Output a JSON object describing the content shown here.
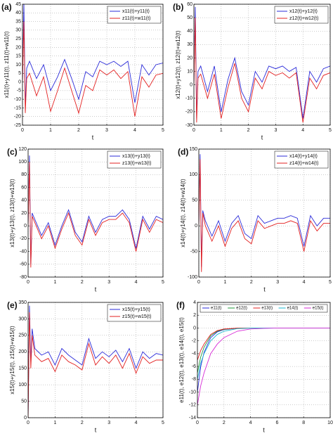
{
  "chart_data": [
    {
      "type": "line",
      "panel_label": "(a)",
      "xlabel": "t",
      "ylabel": "x11(t)+y11(t), z11(t)+w11(t)",
      "grid": true,
      "legend": "upper right",
      "xlim": [
        0,
        5
      ],
      "xticks": [
        0,
        1,
        2,
        3,
        4,
        5
      ],
      "ylim": [
        -25,
        45
      ],
      "yticks": [
        -25,
        -20,
        -15,
        -10,
        -5,
        0,
        5,
        10,
        15,
        20,
        25,
        30,
        35,
        40,
        45
      ],
      "x": [
        0,
        0.05,
        0.1,
        0.15,
        0.25,
        0.5,
        0.75,
        1,
        1.25,
        1.5,
        1.75,
        2,
        2.25,
        2.5,
        2.75,
        3,
        3.25,
        3.5,
        3.75,
        4,
        4.25,
        4.5,
        4.75,
        5
      ],
      "series": [
        {
          "name": "x11(t)+y11(t)",
          "color": "#2b2bd9",
          "values": [
            0,
            45,
            -15,
            8,
            12,
            2,
            10,
            -5,
            3,
            13,
            2,
            -10,
            6,
            3,
            12,
            10,
            12,
            9,
            12,
            -12,
            10,
            4,
            10,
            11
          ]
        },
        {
          "name": "z11(t)+w11(t)",
          "color": "#e32020",
          "values": [
            0,
            35,
            -18,
            2,
            5,
            -8,
            3,
            -17,
            -5,
            8,
            -5,
            -18,
            -2,
            -5,
            7,
            4,
            7,
            2,
            6,
            -20,
            3,
            -3,
            4,
            5
          ]
        }
      ]
    },
    {
      "type": "line",
      "panel_label": "(b)",
      "xlabel": "t",
      "ylabel": "x12(t)+y12(t), z12(t)+w12(t)",
      "grid": true,
      "legend": "upper right",
      "xlim": [
        0,
        5
      ],
      "xticks": [
        0,
        1,
        2,
        3,
        4,
        5
      ],
      "ylim": [
        -30,
        60
      ],
      "yticks": [
        -30,
        -20,
        -10,
        0,
        10,
        20,
        30,
        40,
        50,
        60
      ],
      "x": [
        0,
        0.05,
        0.1,
        0.15,
        0.25,
        0.5,
        0.75,
        1,
        1.25,
        1.5,
        1.75,
        2,
        2.25,
        2.5,
        2.75,
        3,
        3.25,
        3.5,
        3.75,
        4,
        4.25,
        4.5,
        4.75,
        5
      ],
      "series": [
        {
          "name": "x12(t)+y12(t)",
          "color": "#2b2bd9",
          "values": [
            0,
            58,
            -25,
            10,
            14,
            -5,
            14,
            -20,
            4,
            20,
            -5,
            -15,
            10,
            2,
            14,
            12,
            14,
            10,
            13,
            -25,
            10,
            2,
            12,
            14
          ]
        },
        {
          "name": "z12(t)+w12(t)",
          "color": "#e32020",
          "values": [
            0,
            50,
            -28,
            5,
            8,
            -10,
            8,
            -25,
            -2,
            16,
            -10,
            -20,
            5,
            -3,
            10,
            7,
            9,
            5,
            9,
            -28,
            5,
            -3,
            7,
            9
          ]
        }
      ]
    },
    {
      "type": "line",
      "panel_label": "(c)",
      "xlabel": "t",
      "ylabel": "x13(t)+y13(t), z13(t)+w13(t)",
      "grid": true,
      "legend": "upper right",
      "xlim": [
        0,
        5
      ],
      "xticks": [
        0,
        1,
        2,
        3,
        4,
        5
      ],
      "ylim": [
        -80,
        120
      ],
      "yticks": [
        -80,
        -60,
        -40,
        -20,
        0,
        20,
        40,
        60,
        80,
        100,
        120
      ],
      "x": [
        0,
        0.05,
        0.1,
        0.15,
        0.25,
        0.5,
        0.75,
        1,
        1.25,
        1.5,
        1.75,
        2,
        2.25,
        2.5,
        2.75,
        3,
        3.25,
        3.5,
        3.75,
        4,
        4.25,
        4.5,
        4.75,
        5
      ],
      "series": [
        {
          "name": "x13(t)+y13(t)",
          "color": "#2b2bd9",
          "values": [
            0,
            110,
            -60,
            20,
            10,
            -15,
            5,
            -30,
            0,
            25,
            -10,
            -25,
            15,
            -10,
            10,
            15,
            15,
            25,
            10,
            -35,
            15,
            -5,
            15,
            10
          ]
        },
        {
          "name": "z13(t)+w13(t)",
          "color": "#e32020",
          "values": [
            0,
            100,
            -65,
            15,
            5,
            -20,
            0,
            -35,
            -5,
            20,
            -15,
            -30,
            10,
            -15,
            5,
            10,
            10,
            20,
            5,
            -40,
            10,
            -10,
            10,
            5
          ]
        }
      ]
    },
    {
      "type": "line",
      "panel_label": "(d)",
      "xlabel": "t",
      "ylabel": "x14(t)+y14(t), z14(t)+w14(t)",
      "grid": true,
      "legend": "upper right",
      "xlim": [
        0,
        5
      ],
      "xticks": [
        0,
        1,
        2,
        3,
        4,
        5
      ],
      "ylim": [
        -100,
        150
      ],
      "yticks": [
        -100,
        -50,
        0,
        50,
        100,
        150
      ],
      "x": [
        0,
        0.05,
        0.1,
        0.15,
        0.25,
        0.5,
        0.75,
        1,
        1.25,
        1.5,
        1.75,
        2,
        2.25,
        2.5,
        2.75,
        3,
        3.25,
        3.5,
        3.75,
        4,
        4.25,
        4.5,
        4.75,
        5
      ],
      "series": [
        {
          "name": "x14(t)+y14(t)",
          "color": "#2b2bd9",
          "values": [
            0,
            140,
            -80,
            30,
            10,
            -20,
            10,
            -30,
            5,
            20,
            -15,
            -25,
            20,
            5,
            10,
            15,
            15,
            20,
            15,
            -40,
            20,
            0,
            15,
            15
          ]
        },
        {
          "name": "z14(t)+w14(t)",
          "color": "#e32020",
          "values": [
            0,
            130,
            -90,
            25,
            0,
            -30,
            0,
            -40,
            -5,
            10,
            -25,
            -35,
            10,
            -5,
            0,
            5,
            5,
            10,
            5,
            -50,
            10,
            -10,
            5,
            5
          ]
        }
      ]
    },
    {
      "type": "line",
      "panel_label": "(e)",
      "xlabel": "t",
      "ylabel": "x15(t)+y15(t), z15(t)+w15(t)",
      "grid": true,
      "legend": "upper right",
      "xlim": [
        0,
        5
      ],
      "xticks": [
        0,
        1,
        2,
        3,
        4,
        5
      ],
      "ylim": [
        0,
        350
      ],
      "yticks": [
        0,
        50,
        100,
        150,
        200,
        250,
        300,
        350
      ],
      "x": [
        0,
        0.05,
        0.1,
        0.15,
        0.25,
        0.5,
        0.75,
        1,
        1.25,
        1.5,
        1.75,
        2,
        2.25,
        2.5,
        2.75,
        3,
        3.25,
        3.5,
        3.75,
        4,
        4.25,
        4.5,
        4.75,
        5
      ],
      "series": [
        {
          "name": "x15(t)+y15(t)",
          "color": "#2b2bd9",
          "values": [
            0,
            340,
            170,
            270,
            210,
            190,
            200,
            160,
            210,
            190,
            175,
            160,
            240,
            180,
            200,
            185,
            205,
            170,
            210,
            150,
            200,
            180,
            195,
            190
          ]
        },
        {
          "name": "z15(t)+w15(t)",
          "color": "#e32020",
          "values": [
            0,
            320,
            150,
            250,
            190,
            170,
            180,
            140,
            190,
            170,
            160,
            145,
            225,
            160,
            185,
            165,
            190,
            150,
            195,
            135,
            185,
            165,
            175,
            175
          ]
        }
      ]
    },
    {
      "type": "line",
      "panel_label": "(f)",
      "xlabel": "t",
      "ylabel": "e11(t), e12(t), e13(t), e14(t), e15(t)",
      "grid": true,
      "legend": "upper center",
      "xlim": [
        0,
        10
      ],
      "xticks": [
        0,
        2,
        4,
        6,
        8,
        10
      ],
      "ylim": [
        -14,
        4
      ],
      "yticks": [
        -14,
        -12,
        -10,
        -8,
        -6,
        -4,
        -2,
        0,
        2,
        4
      ],
      "x": [
        0,
        0.25,
        0.5,
        1,
        1.5,
        2,
        3,
        4,
        5,
        6,
        8,
        10
      ],
      "series": [
        {
          "name": "e11(t)",
          "color": "#2b2bd9",
          "values": [
            -10,
            -6,
            -3.8,
            -1.5,
            -0.6,
            -0.25,
            -0.04,
            0,
            0,
            0,
            0,
            0
          ]
        },
        {
          "name": "e12(t)",
          "color": "#1f9a3a",
          "values": [
            -7,
            -4.5,
            -3,
            -1.2,
            -0.5,
            -0.2,
            -0.03,
            0,
            0,
            0,
            0,
            0
          ]
        },
        {
          "name": "e13(t)",
          "color": "#e32020",
          "values": [
            -5,
            -3.5,
            -2.5,
            -1,
            -0.4,
            -0.15,
            -0.02,
            0,
            0,
            0,
            0,
            0
          ]
        },
        {
          "name": "e14(t)",
          "color": "#19b8d0",
          "values": [
            -8,
            -5.5,
            -4,
            -2,
            -1,
            -0.5,
            -0.1,
            -0.02,
            0,
            0,
            0,
            0
          ]
        },
        {
          "name": "e15(t)",
          "color": "#d62ad6",
          "values": [
            -12,
            -9,
            -7,
            -4,
            -2.5,
            -1.5,
            -0.5,
            -0.15,
            -0.05,
            0,
            0,
            0
          ]
        }
      ]
    }
  ]
}
